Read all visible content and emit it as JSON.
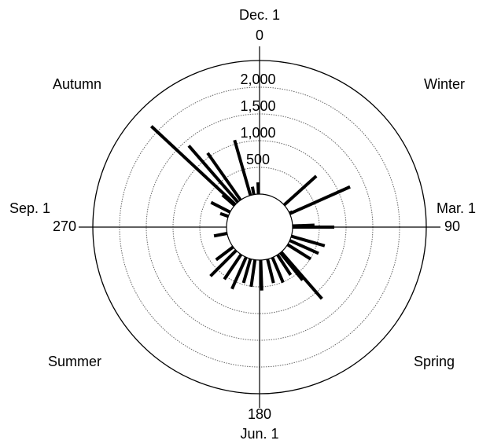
{
  "chart_data": {
    "type": "polar-bar",
    "theta": [
      48,
      65,
      66,
      88,
      90,
      106,
      114,
      122,
      139,
      141,
      147,
      157,
      166,
      178,
      188,
      196,
      204,
      214,
      225,
      233,
      259,
      289,
      297,
      311,
      313,
      319,
      325,
      344,
      350,
      358
    ],
    "values": [
      810,
      60,
      1235,
      410,
      780,
      650,
      590,
      510,
      1160,
      660,
      450,
      510,
      460,
      570,
      510,
      470,
      650,
      560,
      680,
      400,
      250,
      160,
      400,
      300,
      2150,
      1400,
      1075,
      1075,
      150,
      220
    ],
    "color": "#000000",
    "ylim": [
      0,
      2500
    ],
    "yticks": [
      500,
      {
        "value": 1000,
        "label": "1,000"
      },
      {
        "value": 1500,
        "label": "1,500"
      },
      {
        "value": 2000,
        "label": "2,000"
      }
    ],
    "thetaticks": [
      0,
      90,
      180,
      270
    ],
    "month_labels": [
      "Dec. 1",
      "Mar. 1",
      "Jun. 1",
      "Sep. 1"
    ],
    "season_labels": [
      "Winter",
      "Spring",
      "Summer",
      "Autumn"
    ],
    "grid": true
  }
}
